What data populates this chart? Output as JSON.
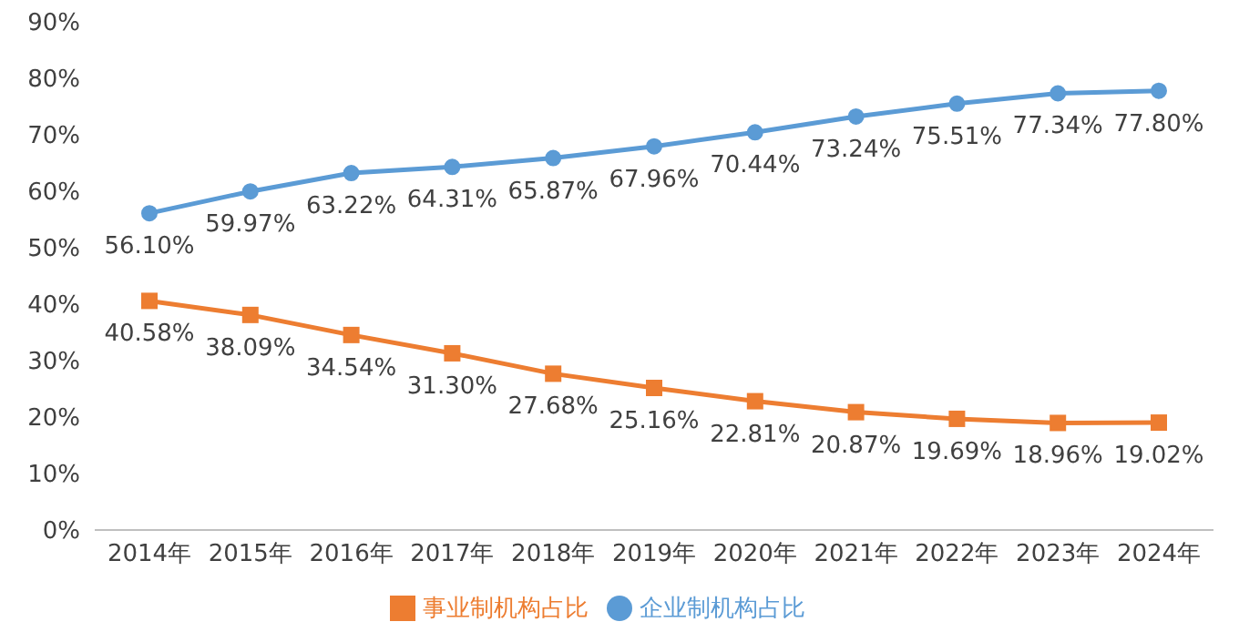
{
  "chart_data": {
    "type": "line",
    "categories": [
      "2014年",
      "2015年",
      "2016年",
      "2017年",
      "2018年",
      "2019年",
      "2020年",
      "2021年",
      "2022年",
      "2023年",
      "2024年"
    ],
    "series": [
      {
        "name": "企业制机构占比",
        "color": "#5b9bd5",
        "marker": "circle",
        "values": [
          56.1,
          59.97,
          63.22,
          64.31,
          65.87,
          67.96,
          70.44,
          73.24,
          75.51,
          77.34,
          77.8
        ],
        "value_labels": [
          "56.10%",
          "59.97%",
          "63.22%",
          "64.31%",
          "65.87%",
          "67.96%",
          "70.44%",
          "73.24%",
          "75.51%",
          "77.34%",
          "77.80%"
        ]
      },
      {
        "name": "事业制机构占比",
        "color": "#ed7d31",
        "marker": "square",
        "values": [
          40.58,
          38.09,
          34.54,
          31.3,
          27.68,
          25.16,
          22.81,
          20.87,
          19.69,
          18.96,
          19.02
        ],
        "value_labels": [
          "40.58%",
          "38.09%",
          "34.54%",
          "31.30%",
          "27.68%",
          "25.16%",
          "22.81%",
          "20.87%",
          "19.69%",
          "18.96%",
          "19.02%"
        ]
      }
    ],
    "ylim": [
      0,
      90
    ],
    "yticks": [
      {
        "value": 0,
        "label": "0%"
      },
      {
        "value": 10,
        "label": "10%"
      },
      {
        "value": 20,
        "label": "20%"
      },
      {
        "value": 30,
        "label": "30%"
      },
      {
        "value": 40,
        "label": "40%"
      },
      {
        "value": 50,
        "label": "50%"
      },
      {
        "value": 60,
        "label": "60%"
      },
      {
        "value": 70,
        "label": "70%"
      },
      {
        "value": 80,
        "label": "80%"
      },
      {
        "value": 90,
        "label": "90%"
      }
    ],
    "grid": false,
    "legend": "bottom"
  }
}
